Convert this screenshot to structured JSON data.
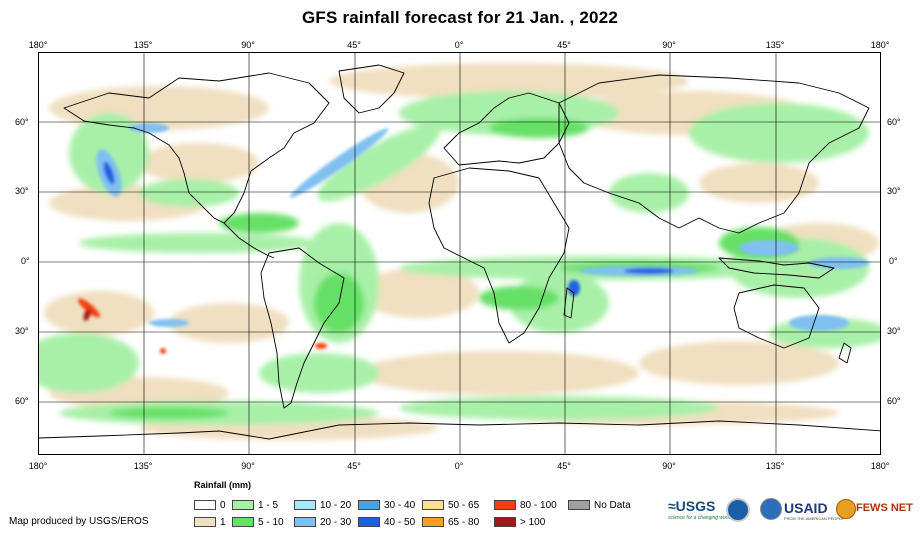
{
  "title": "GFS rainfall forecast for 21 Jan. , 2022",
  "lon_labels": [
    "180°",
    "135°",
    "90°",
    "45°",
    "0°",
    "45°",
    "90°",
    "135°",
    "180°"
  ],
  "lat_labels": [
    "60°",
    "30°",
    "0°",
    "30°",
    "60°"
  ],
  "legend": {
    "title": "Rainfall (mm)",
    "items": [
      {
        "label": "0",
        "color": "#ffffff"
      },
      {
        "label": "1",
        "color": "#f0dfc0"
      },
      {
        "label": "1 - 5",
        "color": "#a8f0a8"
      },
      {
        "label": "5 - 10",
        "color": "#66e066"
      },
      {
        "label": "10 - 20",
        "color": "#a8e8f8"
      },
      {
        "label": "20 - 30",
        "color": "#80c0f0"
      },
      {
        "label": "30 - 40",
        "color": "#4aa0e8"
      },
      {
        "label": "40 - 50",
        "color": "#2060e0"
      },
      {
        "label": "50 - 65",
        "color": "#f8e090"
      },
      {
        "label": "65 - 80",
        "color": "#f8a020"
      },
      {
        "label": "80 - 100",
        "color": "#f04010"
      },
      {
        "label": "> 100",
        "color": "#a01818"
      },
      {
        "label": "No Data",
        "color": "#a0a0a0"
      }
    ]
  },
  "credit": "Map produced by USGS/EROS",
  "logos": {
    "usgs": "≈USGS",
    "usgs_tagline": "science for a changing world",
    "usaid": "USAID",
    "usaid_tagline": "FROM THE AMERICAN PEOPLE",
    "fews": "FEWS NET"
  }
}
